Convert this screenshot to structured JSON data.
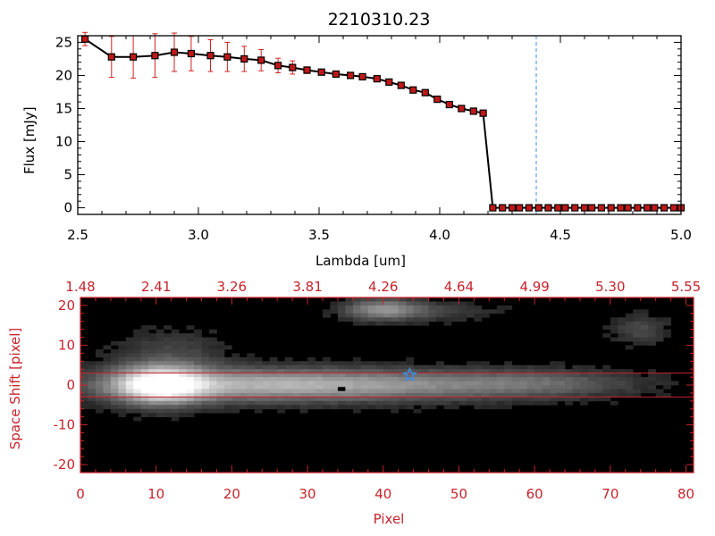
{
  "colors": {
    "axis_top": "#000000",
    "axis_bottom": "#c8232c",
    "error_bar": "#d22020",
    "marker": "#c01818",
    "line": "#000000",
    "vline": "#3a8ee6",
    "extraction_line": "#c8232c",
    "star": "#3a8ee6"
  },
  "chart_data": [
    {
      "type": "line",
      "title": "2210310.23",
      "xlabel": "Lambda [um]",
      "ylabel": "Flux [mJy]",
      "xlim": [
        2.5,
        5.0
      ],
      "ylim": [
        -1,
        26
      ],
      "x_ticks": [
        "2.5",
        "3.0",
        "3.5",
        "4.0",
        "4.5",
        "5.0"
      ],
      "y_ticks": [
        "0",
        "5",
        "10",
        "15",
        "20",
        "25"
      ],
      "vertical_marker_x": 4.4,
      "series": [
        {
          "x": [
            2.53,
            2.64,
            2.73,
            2.82,
            2.9,
            2.97,
            3.05,
            3.12,
            3.19,
            3.26,
            3.33,
            3.39,
            3.45,
            3.51,
            3.57,
            3.63,
            3.68,
            3.74,
            3.79,
            3.84,
            3.89,
            3.94,
            3.99,
            4.04,
            4.09,
            4.14,
            4.18,
            4.22,
            4.26,
            4.3,
            4.33,
            4.37,
            4.41,
            4.45,
            4.49,
            4.52,
            4.56,
            4.6,
            4.63,
            4.67,
            4.71,
            4.75,
            4.78,
            4.82,
            4.86,
            4.89,
            4.93,
            4.97,
            5.0
          ],
          "y": [
            25.5,
            22.8,
            22.8,
            23.0,
            23.5,
            23.3,
            23.0,
            22.8,
            22.5,
            22.3,
            21.5,
            21.2,
            20.8,
            20.5,
            20.2,
            20.0,
            19.8,
            19.5,
            19.0,
            18.5,
            17.8,
            17.4,
            16.4,
            15.6,
            15.0,
            14.6,
            14.3,
            0,
            0,
            0,
            0,
            0,
            0,
            0,
            0,
            0,
            0,
            0,
            0,
            0,
            0,
            0,
            0,
            0,
            0,
            0,
            0,
            0,
            0
          ],
          "yerr": [
            1.0,
            3.1,
            3.2,
            3.3,
            2.9,
            2.6,
            2.4,
            2.2,
            1.9,
            1.6,
            1.1,
            1.0,
            0.5,
            0.4,
            0.3,
            0.3,
            0.3,
            0.2,
            0.2,
            0.2,
            0.2,
            0.2,
            0.2,
            0.2,
            0.2,
            0.2,
            0.2,
            0,
            0,
            0,
            0,
            0,
            0,
            0,
            0,
            0,
            0,
            0,
            0,
            0,
            0,
            0,
            0,
            0,
            0,
            0,
            0,
            0,
            0
          ]
        }
      ]
    },
    {
      "type": "heatmap",
      "xlabel": "Pixel",
      "ylabel": "Space Shift [pixel]",
      "xlim": [
        0,
        81
      ],
      "ylim": [
        -22,
        22
      ],
      "x_ticks": [
        "0",
        "10",
        "20",
        "30",
        "40",
        "50",
        "60",
        "70",
        "80"
      ],
      "y_ticks": [
        "-20",
        "-10",
        "0",
        "10",
        "20"
      ],
      "top_axis_label_values": [
        "1.48",
        "2.41",
        "3.26",
        "3.81",
        "4.26",
        "4.64",
        "4.99",
        "5.30",
        "5.55"
      ],
      "extraction_aperture_y": [
        -3,
        3
      ],
      "star_marker": {
        "x": 43.5,
        "y": 2.5
      },
      "dark_pixel": {
        "x": 34.5,
        "y": -1
      },
      "sources": [
        {
          "x": 10.5,
          "y": 0,
          "sx": 4.0,
          "sy": 3.2,
          "amp": 0.95
        },
        {
          "x": 22,
          "y": 0,
          "sx": 14,
          "sy": 2.8,
          "amp": 0.55
        },
        {
          "x": 46,
          "y": 0,
          "sx": 14,
          "sy": 2.6,
          "amp": 0.32
        },
        {
          "x": 62,
          "y": 0.5,
          "sx": 8,
          "sy": 2.3,
          "amp": 0.16
        },
        {
          "x": 12,
          "y": 8,
          "sx": 5,
          "sy": 4,
          "amp": 0.15
        },
        {
          "x": 40,
          "y": 19,
          "sx": 3.5,
          "sy": 1.8,
          "amp": 0.45
        },
        {
          "x": 47,
          "y": 18.5,
          "sx": 6,
          "sy": 1.6,
          "amp": 0.13
        },
        {
          "x": 74,
          "y": 14,
          "sx": 2.5,
          "sy": 2.5,
          "amp": 0.18
        }
      ]
    }
  ]
}
